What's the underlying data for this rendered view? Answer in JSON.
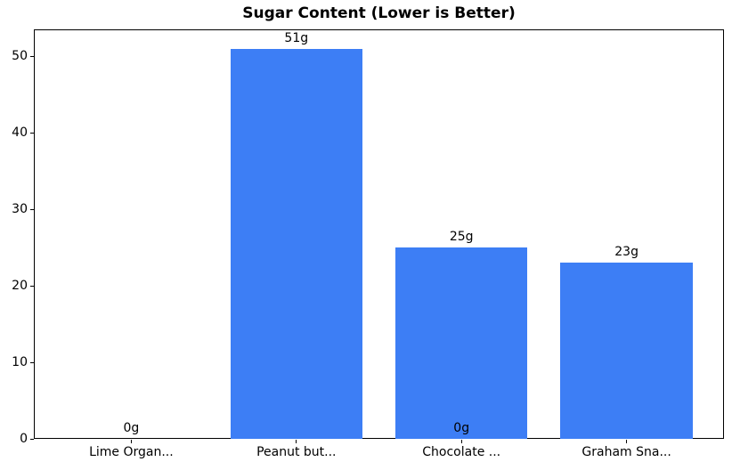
{
  "chart_data": {
    "type": "bar",
    "title": "Sugar Content (Lower is Better)",
    "categories": [
      "Lime Organ...",
      "Peanut but...",
      "Chocolate ...",
      "Graham Sna..."
    ],
    "values": [
      0,
      51,
      25,
      23
    ],
    "bar_labels": [
      "0g",
      "51g",
      "25g",
      "23g"
    ],
    "extra_annotations": [
      {
        "category_index": 2,
        "value": 0,
        "label": "0g"
      }
    ],
    "yticks": [
      0,
      10,
      20,
      30,
      40,
      50
    ],
    "ylim": [
      0,
      53.55
    ],
    "xlabel": "",
    "ylabel": "",
    "grid": false,
    "legend": "none",
    "bar_width": 0.8,
    "colors": {
      "bar": "#3d7ef5",
      "axis": "#000000",
      "text": "#000000",
      "background": "#ffffff"
    }
  }
}
